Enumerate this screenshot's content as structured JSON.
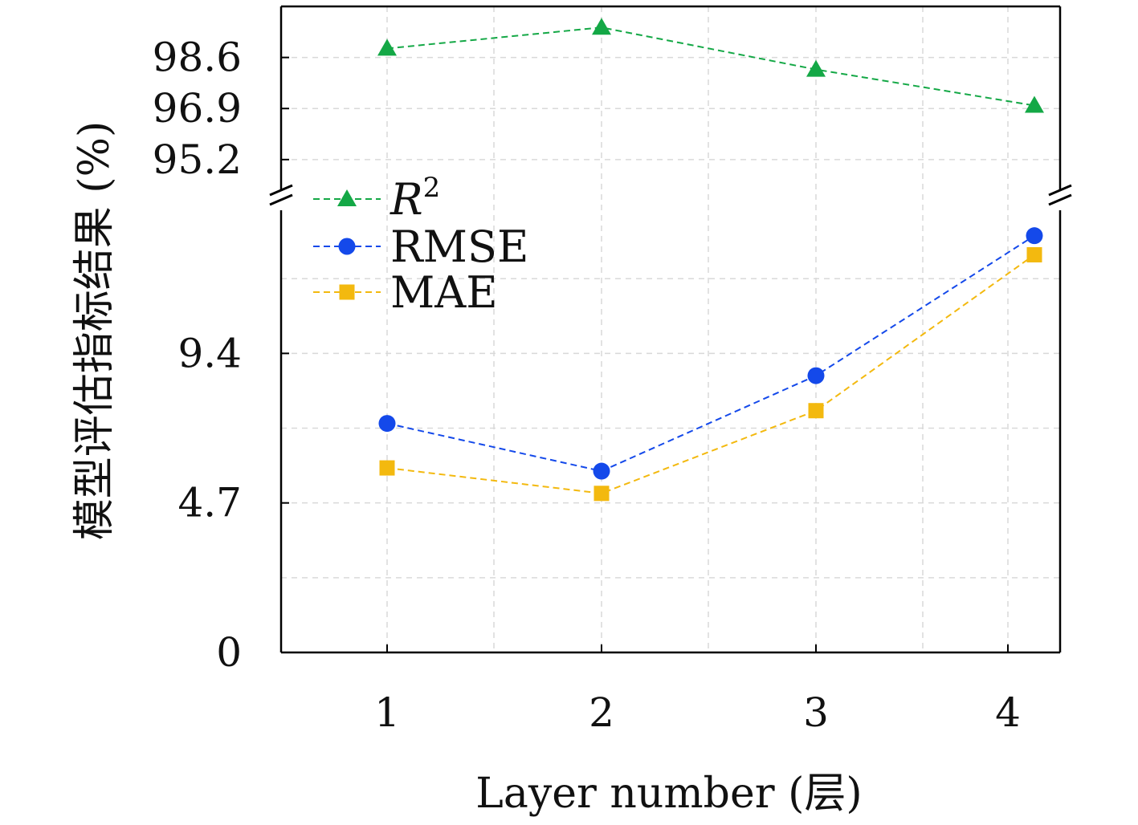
{
  "chart_data": {
    "type": "line",
    "x": [
      1,
      2,
      3,
      4
    ],
    "xticks": [
      "1",
      "2",
      "3",
      "4"
    ],
    "xlabel": "Layer number (层)",
    "ylabel": "模型评估指标结果 (%)",
    "broken_y_axis": true,
    "yticks_upper": [
      "95.2",
      "96.9",
      "98.6"
    ],
    "yticks_lower": [
      "0",
      "4.7",
      "9.4"
    ],
    "ylim_upper": [
      94.1,
      100.3
    ],
    "ylim_lower": [
      0,
      14.0
    ],
    "grid": true,
    "legend_position": "upper-left",
    "series": [
      {
        "name": "R",
        "name_superscript": "2",
        "panel": "upper",
        "marker": "triangle",
        "color": "#14a846",
        "values": [
          98.9,
          99.6,
          98.2,
          97.0
        ]
      },
      {
        "name": "RMSE",
        "panel": "lower",
        "marker": "circle",
        "color": "#1449ea",
        "values": [
          7.2,
          5.7,
          8.7,
          13.1
        ]
      },
      {
        "name": "MAE",
        "panel": "lower",
        "marker": "square",
        "color": "#f3b90f",
        "values": [
          5.8,
          5.0,
          7.6,
          12.5
        ]
      }
    ]
  }
}
